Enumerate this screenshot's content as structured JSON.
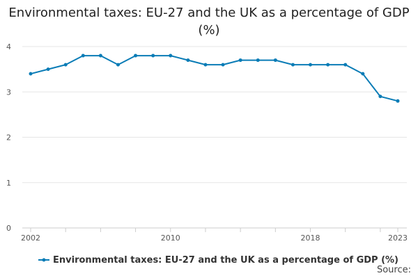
{
  "title": "Environmental taxes: EU-27 and the UK as a percentage of GDP (%)",
  "source_label": "Source:",
  "colors": {
    "series": "#0a7cb6",
    "grid": "#e5e5e5",
    "axis": "#cccccc"
  },
  "chart_data": {
    "type": "line",
    "title": "Environmental taxes: EU-27 and the UK as a percentage of GDP (%)",
    "x": [
      2002,
      2003,
      2004,
      2005,
      2006,
      2007,
      2008,
      2009,
      2010,
      2011,
      2012,
      2013,
      2014,
      2015,
      2016,
      2017,
      2018,
      2019,
      2020,
      2021,
      2022,
      2023
    ],
    "series": [
      {
        "name": "Environmental taxes: EU-27 and the UK as a percentage of GDP (%)",
        "values": [
          3.4,
          3.5,
          3.6,
          3.8,
          3.8,
          3.6,
          3.8,
          3.8,
          3.8,
          3.7,
          3.6,
          3.6,
          3.7,
          3.7,
          3.7,
          3.6,
          3.6,
          3.6,
          3.6,
          3.4,
          2.9,
          2.8
        ]
      }
    ],
    "x_tick_labels": [
      "2002",
      "2010",
      "2018",
      "2023"
    ],
    "y_tick_labels": [
      "0",
      "1",
      "2",
      "3",
      "4"
    ],
    "xlabel": "",
    "ylabel": "",
    "ylim": [
      0,
      4
    ],
    "xlim": [
      2002,
      2023
    ],
    "grid": true,
    "legend_position": "bottom"
  }
}
